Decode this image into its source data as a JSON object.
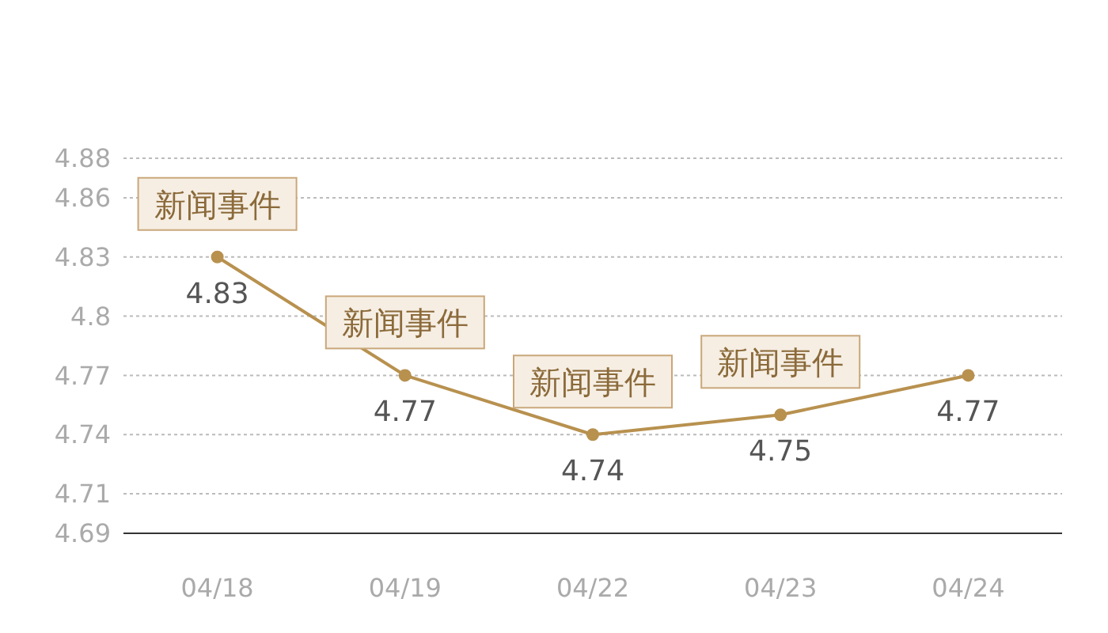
{
  "chart_data": {
    "type": "line",
    "categories": [
      "04/18",
      "04/19",
      "04/22",
      "04/23",
      "04/24"
    ],
    "series": [
      {
        "color": "#b8914f",
        "values": [
          4.83,
          4.77,
          4.74,
          4.75,
          4.77
        ]
      }
    ],
    "ylim": [
      4.69,
      4.88
    ],
    "yticks": [
      4.69,
      4.71,
      4.74,
      4.77,
      4.8,
      4.83,
      4.86,
      4.88
    ],
    "grid": "y",
    "marker": "circle",
    "line_style": "solid",
    "data_labels": true,
    "annotations": [
      {
        "text": "新闻事件",
        "x": "04/18",
        "y": 4.83
      },
      {
        "text": "新闻事件",
        "x": "04/19",
        "y": 4.77
      },
      {
        "text": "新闻事件",
        "x": "04/22",
        "y": 4.74
      },
      {
        "text": "新闻事件",
        "x": "04/23",
        "y": 4.75
      }
    ]
  }
}
